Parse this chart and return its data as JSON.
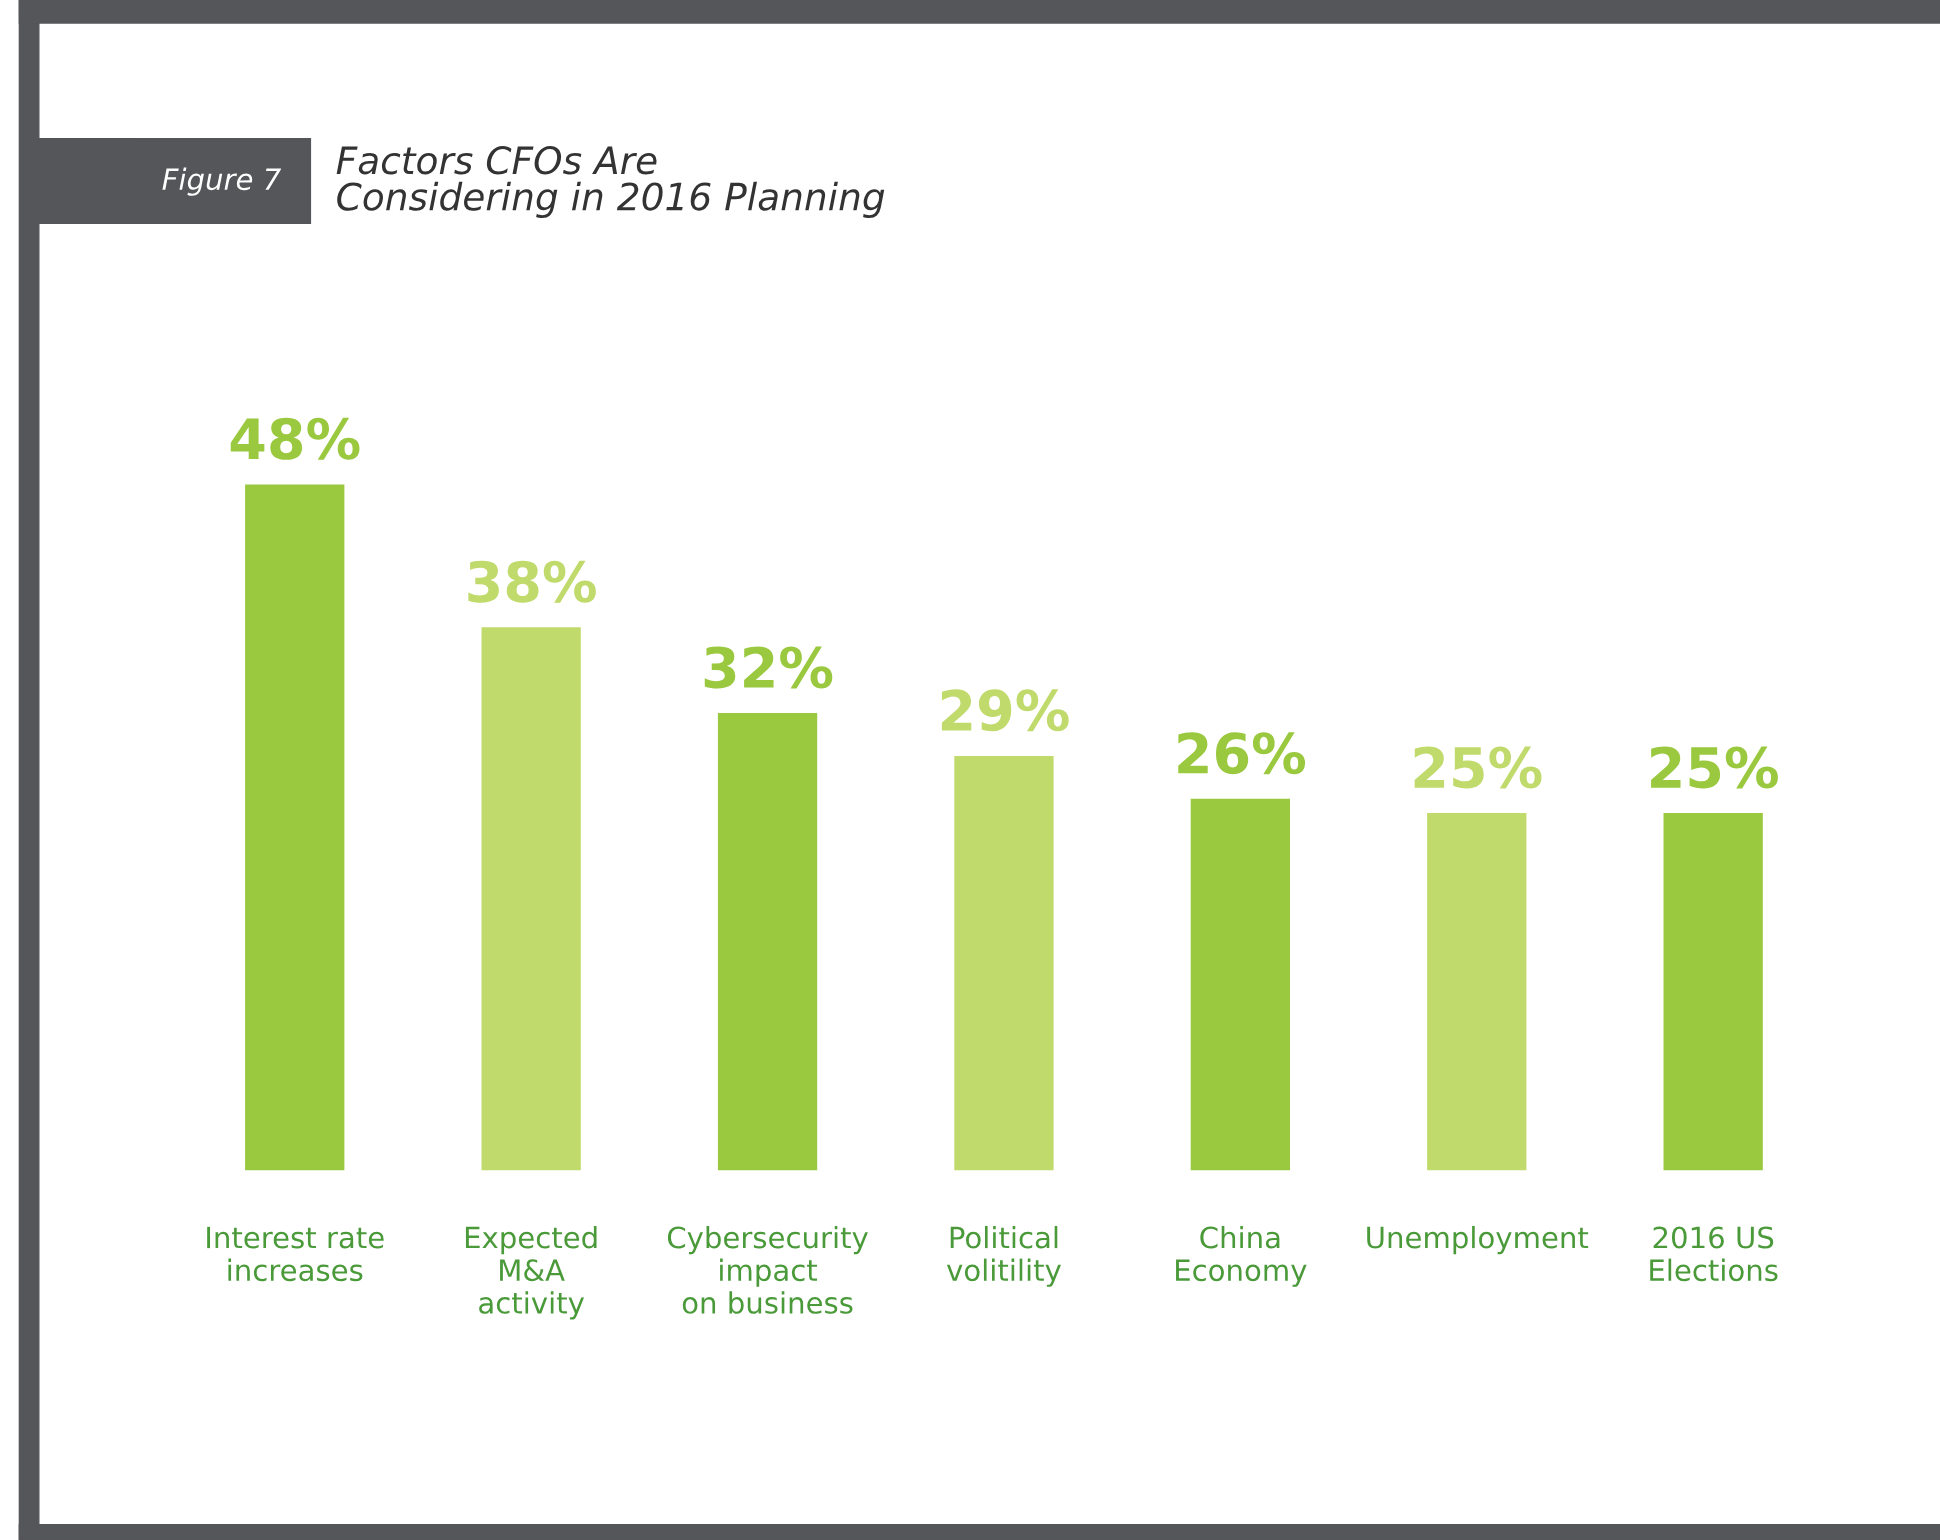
{
  "chart_data": {
    "type": "bar",
    "title": "Factors CFOs Are\nConsidering in 2016 Planning",
    "annotations": [
      "Figure 7"
    ],
    "categories": [
      "Interest rate\nincreases",
      "Expected\nM&A\nactivity",
      "Cybersecurity\nimpact\non business",
      "Political\nvolitility",
      "China\nEconomy",
      "Unemployment",
      "2016 US\nElections"
    ],
    "values": [
      48,
      38,
      32,
      29,
      26,
      25,
      25
    ],
    "colors": [
      "#9ac83e",
      "#c0da6b",
      "#9ac83e",
      "#c0da6b",
      "#9ac83e",
      "#c0da6b",
      "#9ac83e"
    ],
    "value_labels": [
      "48%",
      "38%",
      "32%",
      "29%",
      "26%",
      "25%",
      "25%"
    ],
    "grid": false,
    "legend": false
  }
}
